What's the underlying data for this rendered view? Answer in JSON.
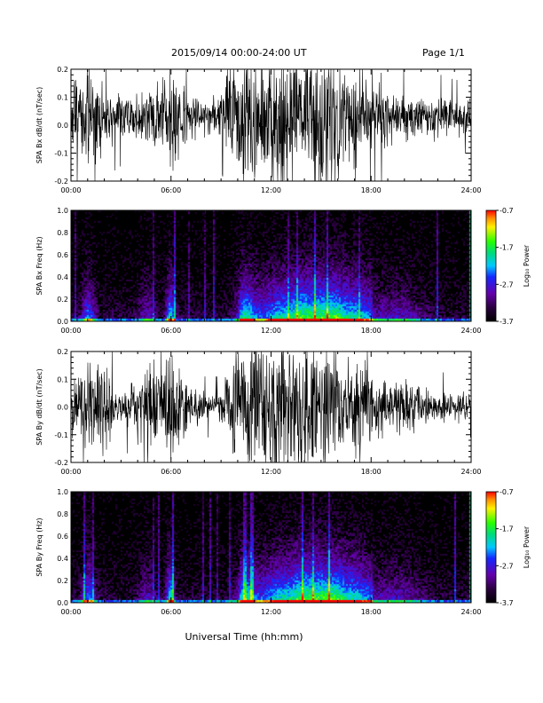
{
  "header": {
    "title": "2015/09/14  00:00-24:00 UT",
    "page": "Page 1/1"
  },
  "chart_data": [
    {
      "type": "line",
      "ylabel": "SPA Bx dB/dt (nT/sec)",
      "xlim": [
        "00:00",
        "24:00"
      ],
      "ylim": [
        -0.2,
        0.2
      ],
      "x_ticks": [
        "00:00",
        "06:00",
        "12:00",
        "18:00",
        "24:00"
      ],
      "y_ticks": [
        "-0.2",
        "-0.1",
        "0.0",
        "0.1",
        "0.2"
      ],
      "series": [
        {
          "envelope_hours": [
            0,
            1,
            2,
            3,
            4,
            5,
            6,
            7,
            8,
            9,
            10,
            11,
            12,
            13,
            14,
            15,
            16,
            17,
            18,
            19,
            20,
            21,
            22,
            23,
            24
          ],
          "center": [
            0.04,
            0.03,
            0.03,
            0.03,
            0.02,
            0.02,
            0.03,
            0.03,
            0.03,
            0.03,
            0.03,
            0.03,
            0.02,
            0.02,
            0.03,
            0.03,
            0.03,
            0.03,
            0.03,
            0.03,
            0.03,
            0.03,
            0.03,
            0.03,
            0.03
          ],
          "amplitude": [
            0.12,
            0.2,
            0.1,
            0.08,
            0.09,
            0.12,
            0.22,
            0.1,
            0.06,
            0.08,
            0.25,
            0.25,
            0.25,
            0.25,
            0.25,
            0.25,
            0.22,
            0.18,
            0.15,
            0.12,
            0.1,
            0.08,
            0.07,
            0.06,
            0.06
          ]
        }
      ]
    },
    {
      "type": "heatmap",
      "ylabel": "SPA Bx Freq (Hz)",
      "xlim": [
        "00:00",
        "24:00"
      ],
      "ylim": [
        0.0,
        1.0
      ],
      "x_ticks": [
        "00:00",
        "06:00",
        "12:00",
        "18:00",
        "24:00"
      ],
      "y_ticks": [
        "0.0",
        "0.2",
        "0.4",
        "0.6",
        "0.8",
        "1.0"
      ],
      "colorbar": {
        "label": "Log₁₀ Power",
        "ticks": [
          "-0.7",
          "-1.7",
          "-2.7",
          "-3.7"
        ],
        "range": [
          -3.7,
          -0.7
        ]
      }
    },
    {
      "type": "line",
      "ylabel": "SPA By dB/dt (nT/sec)",
      "xlim": [
        "00:00",
        "24:00"
      ],
      "ylim": [
        -0.2,
        0.2
      ],
      "x_ticks": [
        "00:00",
        "06:00",
        "12:00",
        "18:00",
        "24:00"
      ],
      "y_ticks": [
        "-0.2",
        "-0.1",
        "0.0",
        "0.1",
        "0.2"
      ],
      "series": [
        {
          "envelope_hours": [
            0,
            1,
            2,
            3,
            4,
            5,
            6,
            7,
            8,
            9,
            10,
            11,
            12,
            13,
            14,
            15,
            16,
            17,
            18,
            19,
            20,
            21,
            22,
            23,
            24
          ],
          "center": [
            0.0,
            0.0,
            0.0,
            0.0,
            0.0,
            0.0,
            0.0,
            0.0,
            0.0,
            0.0,
            0.0,
            0.0,
            0.0,
            0.0,
            0.0,
            0.0,
            0.0,
            0.0,
            0.0,
            0.0,
            0.0,
            0.0,
            0.0,
            0.0,
            0.0
          ],
          "amplitude": [
            0.1,
            0.18,
            0.15,
            0.05,
            0.12,
            0.18,
            0.22,
            0.1,
            0.05,
            0.05,
            0.25,
            0.25,
            0.25,
            0.25,
            0.25,
            0.25,
            0.22,
            0.18,
            0.15,
            0.12,
            0.1,
            0.08,
            0.06,
            0.05,
            0.05
          ]
        }
      ]
    },
    {
      "type": "heatmap",
      "ylabel": "SPA By Freq (Hz)",
      "xlim": [
        "00:00",
        "24:00"
      ],
      "ylim": [
        0.0,
        1.0
      ],
      "x_ticks": [
        "00:00",
        "06:00",
        "12:00",
        "18:00",
        "24:00"
      ],
      "y_ticks": [
        "0.0",
        "0.2",
        "0.4",
        "0.6",
        "0.8",
        "1.0"
      ],
      "colorbar": {
        "label": "Log₁₀ Power",
        "ticks": [
          "-0.7",
          "-1.7",
          "-2.7",
          "-3.7"
        ],
        "range": [
          -3.7,
          -0.7
        ]
      }
    }
  ],
  "xlabel": "Universal Time (hh:mm)",
  "colors": {
    "trace": "#000000",
    "background": "#ffffff"
  }
}
